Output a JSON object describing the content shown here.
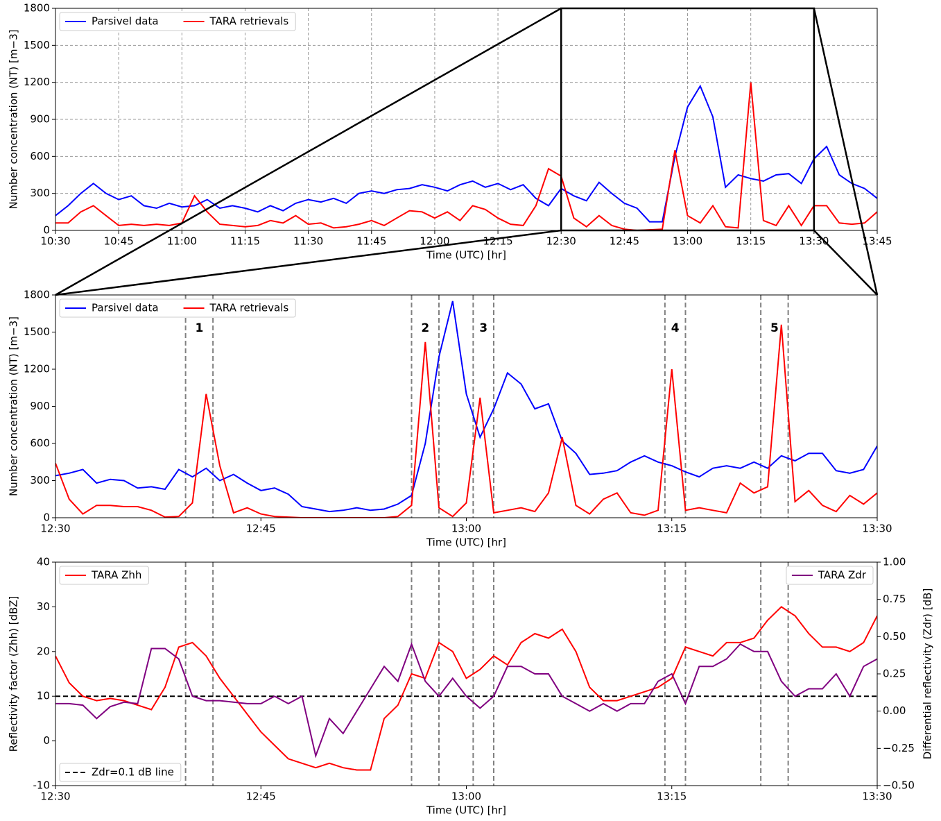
{
  "chart_data": [
    {
      "type": "line",
      "x": [
        "10:30",
        "10:33",
        "10:36",
        "10:39",
        "10:42",
        "10:45",
        "10:48",
        "10:51",
        "10:54",
        "10:57",
        "11:00",
        "11:03",
        "11:06",
        "11:09",
        "11:12",
        "11:15",
        "11:18",
        "11:21",
        "11:24",
        "11:27",
        "11:30",
        "11:33",
        "11:36",
        "11:39",
        "11:42",
        "11:45",
        "11:48",
        "11:51",
        "11:54",
        "11:57",
        "12:00",
        "12:03",
        "12:06",
        "12:09",
        "12:12",
        "12:15",
        "12:18",
        "12:21",
        "12:24",
        "12:27",
        "12:30",
        "12:33",
        "12:36",
        "12:39",
        "12:42",
        "12:45",
        "12:48",
        "12:51",
        "12:54",
        "12:57",
        "13:00",
        "13:03",
        "13:06",
        "13:09",
        "13:12",
        "13:15",
        "13:18",
        "13:21",
        "13:24",
        "13:27",
        "13:30",
        "13:33",
        "13:36",
        "13:39",
        "13:42",
        "13:45"
      ],
      "series": [
        {
          "name": "Parsivel data",
          "color": "#0000ff",
          "values": [
            120,
            200,
            300,
            380,
            300,
            250,
            280,
            200,
            180,
            220,
            190,
            200,
            250,
            180,
            200,
            180,
            150,
            200,
            160,
            220,
            250,
            230,
            260,
            220,
            300,
            320,
            300,
            330,
            340,
            370,
            350,
            320,
            370,
            400,
            350,
            380,
            330,
            370,
            260,
            200,
            340,
            280,
            240,
            390,
            300,
            220,
            180,
            70,
            70,
            600,
            1000,
            1170,
            920,
            350,
            450,
            420,
            400,
            450,
            460,
            380,
            580,
            680,
            450,
            380,
            340,
            260
          ]
        },
        {
          "name": "TARA retrievals",
          "color": "#ff0000",
          "values": [
            60,
            60,
            150,
            200,
            120,
            40,
            50,
            40,
            50,
            40,
            60,
            280,
            150,
            50,
            40,
            30,
            40,
            80,
            60,
            120,
            50,
            60,
            20,
            30,
            50,
            80,
            40,
            100,
            160,
            150,
            100,
            150,
            80,
            200,
            170,
            100,
            50,
            40,
            200,
            500,
            440,
            100,
            30,
            120,
            40,
            10,
            0,
            5,
            10,
            650,
            120,
            60,
            200,
            30,
            20,
            1200,
            80,
            40,
            200,
            40,
            200,
            200,
            60,
            50,
            60,
            150
          ]
        }
      ],
      "xlim": [
        "10:30",
        "13:45"
      ],
      "xticks": [
        "10:30",
        "10:45",
        "11:00",
        "11:15",
        "11:30",
        "11:45",
        "12:00",
        "12:15",
        "12:30",
        "12:45",
        "13:00",
        "13:15",
        "13:30",
        "13:45"
      ],
      "ylim": [
        0,
        1800
      ],
      "yticks": [
        0,
        300,
        600,
        900,
        1200,
        1500,
        1800
      ],
      "xlabel": "Time (UTC) [hr]",
      "ylabel": "Number concentration (NT) [m−3]",
      "grid": true,
      "legend": "upper left"
    },
    {
      "type": "line",
      "x": [
        "12:30",
        "12:31",
        "12:32",
        "12:33",
        "12:34",
        "12:35",
        "12:36",
        "12:37",
        "12:38",
        "12:39",
        "12:40",
        "12:41",
        "12:42",
        "12:43",
        "12:44",
        "12:45",
        "12:46",
        "12:47",
        "12:48",
        "12:49",
        "12:50",
        "12:51",
        "12:52",
        "12:53",
        "12:54",
        "12:55",
        "12:56",
        "12:57",
        "12:58",
        "12:59",
        "13:00",
        "13:01",
        "13:02",
        "13:03",
        "13:04",
        "13:05",
        "13:06",
        "13:07",
        "13:08",
        "13:09",
        "13:10",
        "13:11",
        "13:12",
        "13:13",
        "13:14",
        "13:15",
        "13:16",
        "13:17",
        "13:18",
        "13:19",
        "13:20",
        "13:21",
        "13:22",
        "13:23",
        "13:24",
        "13:25",
        "13:26",
        "13:27",
        "13:28",
        "13:29",
        "13:30"
      ],
      "series": [
        {
          "name": "Parsivel data",
          "color": "#0000ff",
          "values": [
            340,
            360,
            390,
            280,
            310,
            300,
            240,
            250,
            230,
            390,
            330,
            400,
            300,
            350,
            280,
            220,
            240,
            190,
            90,
            70,
            50,
            60,
            80,
            60,
            70,
            110,
            180,
            600,
            1300,
            1750,
            1000,
            650,
            880,
            1170,
            1080,
            880,
            920,
            620,
            520,
            350,
            360,
            380,
            450,
            500,
            450,
            420,
            370,
            330,
            400,
            420,
            400,
            450,
            400,
            500,
            460,
            520,
            520,
            380,
            360,
            390,
            580
          ]
        },
        {
          "name": "TARA retrievals",
          "color": "#ff0000",
          "values": [
            440,
            150,
            30,
            100,
            100,
            90,
            90,
            60,
            5,
            10,
            120,
            1000,
            420,
            40,
            80,
            30,
            10,
            5,
            0,
            0,
            0,
            0,
            0,
            0,
            0,
            10,
            100,
            1420,
            80,
            10,
            120,
            970,
            40,
            60,
            80,
            50,
            200,
            650,
            100,
            30,
            150,
            200,
            40,
            20,
            60,
            1200,
            60,
            80,
            60,
            40,
            280,
            200,
            250,
            1560,
            130,
            220,
            100,
            50,
            180,
            110,
            200
          ]
        }
      ],
      "xlim": [
        "12:30",
        "13:30"
      ],
      "xticks": [
        "12:30",
        "12:45",
        "13:00",
        "13:15",
        "13:30"
      ],
      "ylim": [
        0,
        1800
      ],
      "yticks": [
        0,
        300,
        600,
        900,
        1200,
        1500,
        1800
      ],
      "xlabel": "Time (UTC) [hr]",
      "ylabel": "Number concentration (NT) [m−3]",
      "grid": false,
      "legend": "upper left",
      "events": [
        {
          "label": "1",
          "start": "12:39:30",
          "end": "12:41:30"
        },
        {
          "label": "2",
          "start": "12:56:00",
          "end": "12:58:00"
        },
        {
          "label": "3",
          "start": "13:00:30",
          "end": "13:02:00"
        },
        {
          "label": "4",
          "start": "13:14:30",
          "end": "13:16:00"
        },
        {
          "label": "5",
          "start": "13:21:30",
          "end": "13:23:30"
        }
      ]
    },
    {
      "type": "line",
      "x": [
        "12:30",
        "12:31",
        "12:32",
        "12:33",
        "12:34",
        "12:35",
        "12:36",
        "12:37",
        "12:38",
        "12:39",
        "12:40",
        "12:41",
        "12:42",
        "12:43",
        "12:44",
        "12:45",
        "12:46",
        "12:47",
        "12:48",
        "12:49",
        "12:50",
        "12:51",
        "12:52",
        "12:53",
        "12:54",
        "12:55",
        "12:56",
        "12:57",
        "12:58",
        "12:59",
        "13:00",
        "13:01",
        "13:02",
        "13:03",
        "13:04",
        "13:05",
        "13:06",
        "13:07",
        "13:08",
        "13:09",
        "13:10",
        "13:11",
        "13:12",
        "13:13",
        "13:14",
        "13:15",
        "13:16",
        "13:17",
        "13:18",
        "13:19",
        "13:20",
        "13:21",
        "13:22",
        "13:23",
        "13:24",
        "13:25",
        "13:26",
        "13:27",
        "13:28",
        "13:29",
        "13:30"
      ],
      "series": [
        {
          "name": "TARA Zhh",
          "color": "#ff0000",
          "legend": "upper left",
          "values": [
            19,
            13,
            10,
            9,
            9.5,
            9,
            8,
            7,
            12,
            21,
            22,
            19,
            14,
            10,
            6,
            2,
            -1,
            -4,
            -5,
            -6,
            -5,
            -6,
            -6.5,
            -6.5,
            5,
            8,
            15,
            14,
            22,
            20,
            14,
            16,
            19,
            17,
            22,
            24,
            23,
            25,
            20,
            12,
            9,
            9,
            10,
            11,
            12,
            14,
            21,
            20,
            19,
            22,
            22,
            23,
            27,
            30,
            28,
            24,
            21,
            21,
            20,
            22,
            28
          ]
        },
        {
          "name": "TARA Zdr",
          "color": "#800080",
          "axis": "y2",
          "legend": "upper right",
          "values": [
            0.05,
            0.05,
            0.04,
            -0.05,
            0.03,
            0.06,
            0.05,
            0.42,
            0.42,
            0.35,
            0.1,
            0.07,
            0.07,
            0.06,
            0.05,
            0.05,
            0.1,
            0.05,
            0.1,
            -0.3,
            -0.05,
            -0.15,
            0,
            0.15,
            0.3,
            0.2,
            0.45,
            0.2,
            0.1,
            0.22,
            0.1,
            0.02,
            0.1,
            0.3,
            0.3,
            0.25,
            0.25,
            0.1,
            0.05,
            0,
            0.05,
            0,
            0.05,
            0.05,
            0.2,
            0.25,
            0.05,
            0.3,
            0.3,
            0.35,
            0.45,
            0.4,
            0.4,
            0.2,
            0.1,
            0.15,
            0.15,
            0.25,
            0.1,
            0.3,
            0.35
          ]
        }
      ],
      "hline": {
        "name": "Zdr=0.1 dB line",
        "value": 0.1,
        "axis": "y2",
        "color": "#000000",
        "legend": "lower left"
      },
      "xlim": [
        "12:30",
        "13:30"
      ],
      "xticks": [
        "12:30",
        "12:45",
        "13:00",
        "13:15",
        "13:30"
      ],
      "ylim": [
        -10,
        40
      ],
      "yticks": [
        -10,
        0,
        10,
        20,
        30,
        40
      ],
      "y2lim": [
        -0.5,
        1.0
      ],
      "y2ticks": [
        {
          "value": -0.5,
          "label": "−0.50"
        },
        {
          "value": -0.25,
          "label": "−0.25"
        },
        {
          "value": 0,
          "label": "0.00"
        },
        {
          "value": 0.25,
          "label": "0.25"
        },
        {
          "value": 0.5,
          "label": "0.50"
        },
        {
          "value": 0.75,
          "label": "0.75"
        },
        {
          "value": 1.0,
          "label": "1.00"
        }
      ],
      "xlabel": "Time (UTC) [hr]",
      "ylabel": "Reflectivity factor (Zhh) [dBZ]",
      "y2label": "Differential reflectivity (Zdr) [dB]",
      "grid": false,
      "events": [
        {
          "start": "12:39:30",
          "end": "12:41:30"
        },
        {
          "start": "12:56:00",
          "end": "12:58:00"
        },
        {
          "start": "13:00:30",
          "end": "13:02:00"
        },
        {
          "start": "13:14:30",
          "end": "13:16:00"
        },
        {
          "start": "13:21:30",
          "end": "13:23:30"
        }
      ]
    }
  ]
}
